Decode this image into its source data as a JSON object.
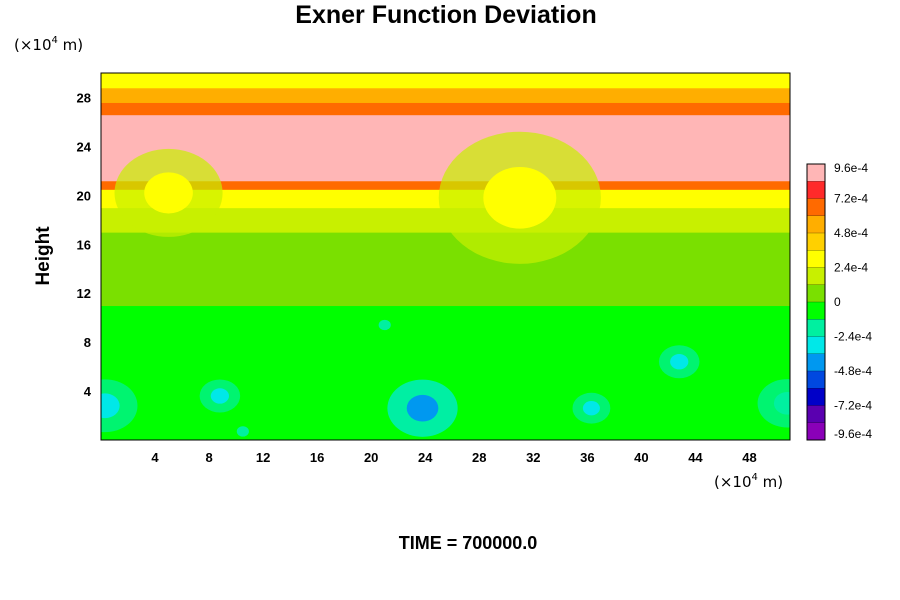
{
  "chart_data": {
    "type": "heatmap",
    "title": "Exner Function Deviation",
    "ylabel": "Height",
    "xunit": "(×10",
    "xunit_exp": "4",
    "xunit_tail": " m)",
    "yunit": "(×10",
    "yunit_exp": "4",
    "yunit_tail": " m)",
    "footer": "TIME = 700000.0",
    "xlim": [
      0,
      51
    ],
    "ylim": [
      0,
      30
    ],
    "xticks": [
      "4",
      "8",
      "12",
      "16",
      "20",
      "24",
      "28",
      "32",
      "36",
      "40",
      "44",
      "48"
    ],
    "xtick_values": [
      4,
      8,
      12,
      16,
      20,
      24,
      28,
      32,
      36,
      40,
      44,
      48
    ],
    "yticks": [
      "4",
      "8",
      "12",
      "16",
      "20",
      "24",
      "28"
    ],
    "ytick_values": [
      4,
      8,
      12,
      16,
      20,
      24,
      28
    ],
    "colorbar": {
      "min": -0.00096,
      "max": 0.00096,
      "labels": [
        "9.6e-4",
        "7.2e-4",
        "4.8e-4",
        "2.4e-4",
        "0",
        "-2.4e-4",
        "-4.8e-4",
        "-7.2e-4",
        "-9.6e-4"
      ],
      "label_values": [
        0.00096,
        0.00072,
        0.00048,
        0.00024,
        0,
        -0.00024,
        -0.00048,
        -0.00072,
        -0.00096
      ],
      "colors": [
        "#ffb6b6",
        "#ff2a2a",
        "#ff6a00",
        "#ffae00",
        "#ffd000",
        "#ffff00",
        "#c8f000",
        "#7ae000",
        "#00ff00",
        "#00f0a0",
        "#00e8e8",
        "#0098f0",
        "#0048e0",
        "#0000c8",
        "#5a00b0",
        "#8a00b8"
      ]
    },
    "bands": [
      {
        "y0": 0,
        "y1": 11,
        "value": -6e-05
      },
      {
        "y0": 11,
        "y1": 17,
        "value": 4e-05
      },
      {
        "y0": 17,
        "y1": 19,
        "value": 0.00016
      },
      {
        "y0": 19,
        "y1": 20.5,
        "value": 0.00034
      },
      {
        "y0": 20.5,
        "y1": 21.2,
        "value": 0.00064
      },
      {
        "y0": 21.2,
        "y1": 21.6,
        "value": 0.00086
      },
      {
        "y0": 21.6,
        "y1": 24.2,
        "value": 0.00096
      },
      {
        "y0": 24.2,
        "y1": 26.6,
        "value": 0.00084
      },
      {
        "y0": 26.6,
        "y1": 27.6,
        "value": 0.00066
      },
      {
        "y0": 27.6,
        "y1": 28.8,
        "value": 0.0005
      },
      {
        "y0": 28.8,
        "y1": 30,
        "value": 0.00036
      }
    ],
    "blobs": [
      {
        "x": 23.8,
        "y": 2.6,
        "r": 2.6,
        "value": -0.00044
      },
      {
        "x": 8.8,
        "y": 3.6,
        "r": 1.5,
        "value": -0.0003
      },
      {
        "x": 0.3,
        "y": 2.8,
        "r": 2.4,
        "value": -0.00024
      },
      {
        "x": 50.8,
        "y": 3.0,
        "r": 2.2,
        "value": -0.00022
      },
      {
        "x": 36.3,
        "y": 2.6,
        "r": 1.4,
        "value": -0.00026
      },
      {
        "x": 42.8,
        "y": 6.4,
        "r": 1.5,
        "value": -0.00024
      },
      {
        "x": 21.0,
        "y": 9.4,
        "r": 1.0,
        "value": -0.0002
      },
      {
        "x": 10.5,
        "y": 0.7,
        "r": 1.0,
        "value": -0.0002
      },
      {
        "x": 31.0,
        "y": 19.8,
        "r": 6.0,
        "value": 0.0003
      },
      {
        "x": 5.0,
        "y": 20.2,
        "r": 4.0,
        "value": 0.00026
      }
    ]
  }
}
